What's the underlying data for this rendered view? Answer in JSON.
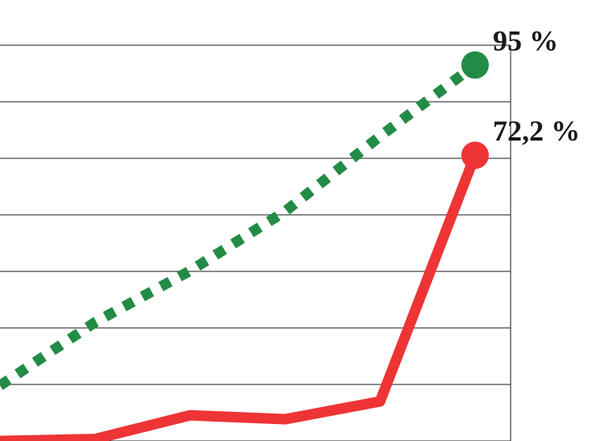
{
  "chart_data": {
    "type": "line",
    "title": "",
    "xlabel": "",
    "ylabel": "",
    "ylim": [
      0,
      100
    ],
    "grid": true,
    "legend": "none",
    "x": [
      0,
      1,
      2,
      3,
      4,
      5
    ],
    "series": [
      {
        "key": "green",
        "color": "#228b45",
        "style": "dotted",
        "values": [
          14,
          30,
          43,
          58,
          77,
          95
        ],
        "end_label": "95 %"
      },
      {
        "key": "red",
        "color": "#ee3434",
        "style": "solid",
        "values": [
          0,
          0.5,
          6.5,
          5.5,
          10,
          72.2
        ],
        "end_label": "72,2 %"
      }
    ]
  }
}
